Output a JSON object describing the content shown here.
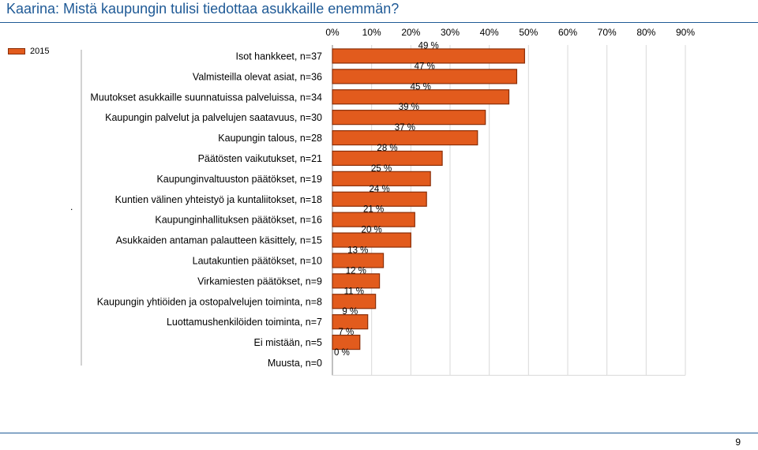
{
  "page": {
    "title": "Kaarina: Mistä kaupungin tulisi tiedottaa asukkaille enemmän?",
    "legend_label": "2015",
    "marker": ".",
    "page_number": "9"
  },
  "colors": {
    "bar": "#e25b1d",
    "bar_outline": "#8a2e08",
    "title": "#1f5a96",
    "gridline": "#d9d9d9"
  },
  "chart_data": {
    "type": "bar",
    "orientation": "horizontal",
    "categories": [
      "Isot hankkeet, n=37",
      "Valmisteilla olevat asiat, n=36",
      "Muutokset asukkaille suunnatuissa palveluissa, n=34",
      "Kaupungin palvelut ja palvelujen saatavuus, n=30",
      "Kaupungin talous, n=28",
      "Päätösten vaikutukset, n=21",
      "Kaupunginvaltuuston päätökset, n=19",
      "Kuntien välinen yhteistyö ja kuntaliitokset, n=18",
      "Kaupunginhallituksen päätökset, n=16",
      "Asukkaiden antaman palautteen käsittely, n=15",
      "Lautakuntien päätökset, n=10",
      "Virkamiesten päätökset, n=9",
      "Kaupungin yhtiöiden ja ostopalvelujen toiminta, n=8",
      "Luottamushenkilöiden toiminta, n=7",
      "Ei mistään, n=5",
      "Muusta, n=0"
    ],
    "series": [
      {
        "name": "2015",
        "values": [
          49,
          47,
          45,
          39,
          37,
          28,
          25,
          24,
          21,
          20,
          13,
          12,
          11,
          9,
          7,
          0
        ]
      }
    ],
    "value_labels": [
      "49 %",
      "47 %",
      "45 %",
      "39 %",
      "37 %",
      "28 %",
      "25 %",
      "24 %",
      "21 %",
      "20 %",
      "13 %",
      "12 %",
      "11 %",
      "9 %",
      "7 %",
      "0 %"
    ],
    "x_ticks": [
      "0%",
      "10%",
      "20%",
      "30%",
      "40%",
      "50%",
      "60%",
      "70%",
      "80%",
      "90%"
    ],
    "xlim": [
      0,
      90
    ],
    "axis_position": "top",
    "grid": true
  }
}
